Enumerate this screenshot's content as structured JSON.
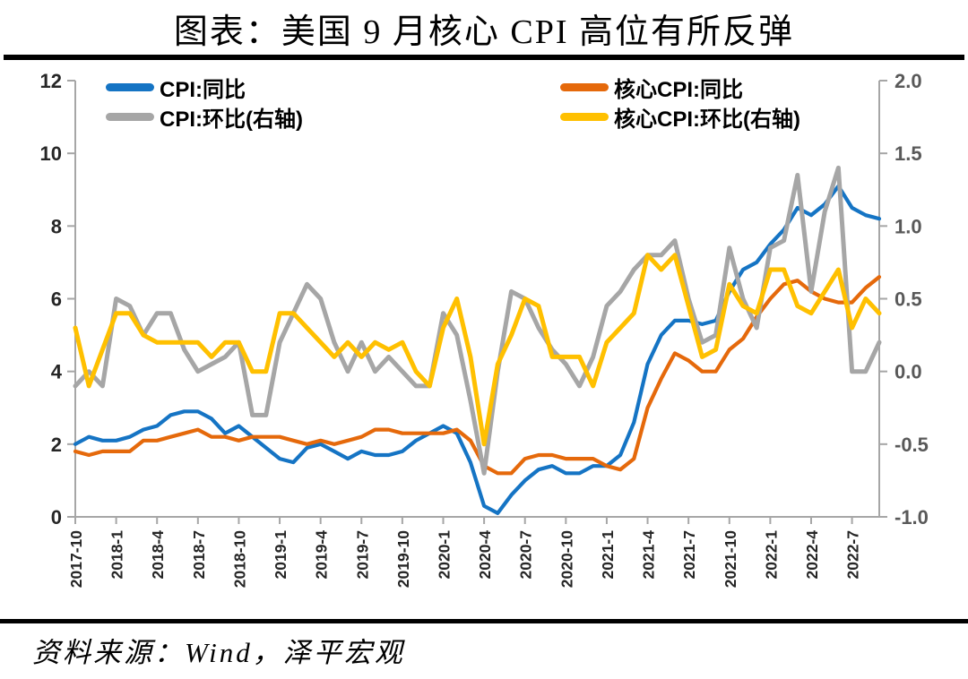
{
  "title": "图表：美国 9 月核心 CPI 高位有所反弹",
  "source_note": "资料来源：Wind，泽平宏观",
  "colors": {
    "cpi_yoy": "#1574C4",
    "core_cpi_yoy": "#E5690B",
    "cpi_mom": "#A6A6A6",
    "core_cpi_mom": "#FFC000",
    "axis_line": "#A6A6A6",
    "left_tick_label": "#262626",
    "right_tick_label": "#595959",
    "divider": "#000000"
  },
  "chart_data": {
    "type": "line",
    "title": "图表：美国 9 月核心 CPI 高位有所反弹",
    "xlabel": "",
    "ylabel_left": "",
    "ylabel_right": "",
    "grid": false,
    "legend_position": "top-inside",
    "x": [
      "2017-10",
      "2017-11",
      "2017-12",
      "2018-1",
      "2018-2",
      "2018-3",
      "2018-4",
      "2018-5",
      "2018-6",
      "2018-7",
      "2018-8",
      "2018-9",
      "2018-10",
      "2018-11",
      "2018-12",
      "2019-1",
      "2019-2",
      "2019-3",
      "2019-4",
      "2019-5",
      "2019-6",
      "2019-7",
      "2019-8",
      "2019-9",
      "2019-10",
      "2019-11",
      "2019-12",
      "2020-1",
      "2020-2",
      "2020-3",
      "2020-4",
      "2020-5",
      "2020-6",
      "2020-7",
      "2020-8",
      "2020-9",
      "2020-10",
      "2020-11",
      "2020-12",
      "2021-1",
      "2021-2",
      "2021-3",
      "2021-4",
      "2021-5",
      "2021-6",
      "2021-7",
      "2021-8",
      "2021-9",
      "2021-10",
      "2021-11",
      "2021-12",
      "2022-1",
      "2022-2",
      "2022-3",
      "2022-4",
      "2022-5",
      "2022-6",
      "2022-7",
      "2022-8",
      "2022-9"
    ],
    "x_tick_labels": [
      "2017-10",
      "2018-1",
      "2018-4",
      "2018-7",
      "2018-10",
      "2019-1",
      "2019-4",
      "2019-7",
      "2019-10",
      "2020-1",
      "2020-4",
      "2020-7",
      "2020-10",
      "2021-1",
      "2021-4",
      "2021-7",
      "2021-10",
      "2022-1",
      "2022-4",
      "2022-7"
    ],
    "left_axis": {
      "min": 0,
      "max": 12,
      "ticks": [
        0,
        2,
        4,
        6,
        8,
        10,
        12
      ]
    },
    "right_axis": {
      "min": -1.0,
      "max": 2.0,
      "ticks": [
        -1.0,
        -0.5,
        0.0,
        0.5,
        1.0,
        1.5,
        2.0
      ]
    },
    "series": [
      {
        "name": "CPI:同比",
        "color": "#1574C4",
        "axis": "left",
        "values": [
          2.0,
          2.2,
          2.1,
          2.1,
          2.2,
          2.4,
          2.5,
          2.8,
          2.9,
          2.9,
          2.7,
          2.3,
          2.5,
          2.2,
          1.9,
          1.6,
          1.5,
          1.9,
          2.0,
          1.8,
          1.6,
          1.8,
          1.7,
          1.7,
          1.8,
          2.1,
          2.3,
          2.5,
          2.3,
          1.5,
          0.3,
          0.1,
          0.6,
          1.0,
          1.3,
          1.4,
          1.2,
          1.2,
          1.4,
          1.4,
          1.7,
          2.6,
          4.2,
          5.0,
          5.4,
          5.4,
          5.3,
          5.4,
          6.2,
          6.8,
          7.0,
          7.5,
          7.9,
          8.5,
          8.3,
          8.6,
          9.1,
          8.5,
          8.3,
          8.2
        ]
      },
      {
        "name": "核心CPI:同比",
        "color": "#E5690B",
        "axis": "left",
        "values": [
          1.8,
          1.7,
          1.8,
          1.8,
          1.8,
          2.1,
          2.1,
          2.2,
          2.3,
          2.4,
          2.2,
          2.2,
          2.1,
          2.2,
          2.2,
          2.2,
          2.1,
          2.0,
          2.1,
          2.0,
          2.1,
          2.2,
          2.4,
          2.4,
          2.3,
          2.3,
          2.3,
          2.3,
          2.4,
          2.1,
          1.4,
          1.2,
          1.2,
          1.6,
          1.7,
          1.7,
          1.6,
          1.6,
          1.6,
          1.4,
          1.3,
          1.6,
          3.0,
          3.8,
          4.5,
          4.3,
          4.0,
          4.0,
          4.6,
          4.9,
          5.5,
          6.0,
          6.4,
          6.5,
          6.2,
          6.0,
          5.9,
          5.9,
          6.3,
          6.6
        ]
      },
      {
        "name": "CPI:环比(右轴)",
        "color": "#A6A6A6",
        "axis": "right",
        "values": [
          -0.1,
          0.0,
          -0.1,
          0.5,
          0.45,
          0.25,
          0.4,
          0.4,
          0.15,
          0.0,
          0.05,
          0.1,
          0.2,
          -0.3,
          -0.3,
          0.2,
          0.4,
          0.6,
          0.5,
          0.2,
          0.0,
          0.2,
          0.0,
          0.1,
          0.0,
          -0.1,
          -0.1,
          0.4,
          0.25,
          -0.2,
          -0.7,
          0.0,
          0.55,
          0.5,
          0.3,
          0.15,
          0.05,
          -0.1,
          0.1,
          0.45,
          0.55,
          0.7,
          0.8,
          0.8,
          0.9,
          0.5,
          0.2,
          0.25,
          0.85,
          0.5,
          0.3,
          0.85,
          0.9,
          1.35,
          0.55,
          1.1,
          1.4,
          0.0,
          0.0,
          0.2
        ]
      },
      {
        "name": "核心CPI:环比(右轴)",
        "color": "#FFC000",
        "axis": "right",
        "values": [
          0.3,
          -0.1,
          0.15,
          0.4,
          0.4,
          0.25,
          0.2,
          0.2,
          0.2,
          0.2,
          0.1,
          0.2,
          0.2,
          0.0,
          0.0,
          0.4,
          0.4,
          0.3,
          0.2,
          0.1,
          0.2,
          0.1,
          0.2,
          0.15,
          0.2,
          0.0,
          -0.1,
          0.3,
          0.5,
          0.1,
          -0.5,
          0.05,
          0.25,
          0.5,
          0.45,
          0.1,
          0.1,
          0.1,
          -0.1,
          0.2,
          0.3,
          0.4,
          0.8,
          0.7,
          0.8,
          0.45,
          0.1,
          0.15,
          0.6,
          0.45,
          0.4,
          0.7,
          0.7,
          0.45,
          0.4,
          0.55,
          0.7,
          0.3,
          0.5,
          0.4
        ]
      }
    ]
  }
}
